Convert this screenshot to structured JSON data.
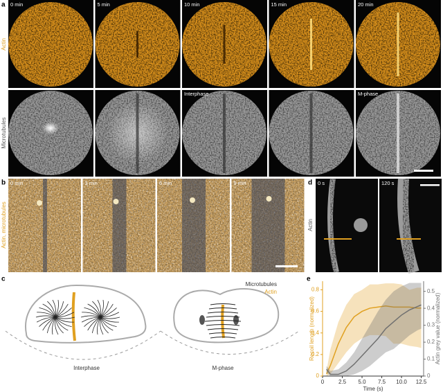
{
  "panels": {
    "a": {
      "label": "a",
      "row_labels": [
        "Actin",
        "Microtubules"
      ],
      "times": [
        "0 min",
        "5 min",
        "10 min",
        "15 min",
        "20 min"
      ],
      "phase_labels": [
        "Interphase",
        "M-phase"
      ]
    },
    "b": {
      "label": "b",
      "side_label": "Actin, microtubules",
      "times": [
        "0 min",
        "3 min",
        "6 min",
        "9 min"
      ]
    },
    "c": {
      "label": "c",
      "legend": [
        "Microtubules",
        "Actin"
      ],
      "captions": [
        "Interphase",
        "M-phase"
      ]
    },
    "d": {
      "label": "d",
      "side_label": "Actin",
      "times": [
        "0 s",
        "120 s"
      ]
    }
  },
  "chart_data": {
    "type": "line",
    "label": "e",
    "x_label": "Time (s)",
    "y_label": "Recoil length (normalized)",
    "y2_label": "Actin grey value (normalized)",
    "x": [
      0.5,
      1,
      2,
      3,
      4,
      5,
      6,
      7,
      8,
      9,
      10,
      11,
      12,
      12.5
    ],
    "xlim": [
      0,
      12.8
    ],
    "xticks": [
      0,
      2.5,
      {
        "value": 5,
        "label": "5.0"
      },
      7.5,
      {
        "value": 10,
        "label": "10.0"
      },
      12.5
    ],
    "ylim": [
      0,
      0.88
    ],
    "yticks": [
      0,
      0.2,
      0.4,
      0.6,
      0.8
    ],
    "y2lim": [
      0,
      0.56
    ],
    "y2ticks": [
      0,
      0.1,
      0.2,
      0.3,
      0.4,
      0.5
    ],
    "series": [
      {
        "name": "Recoil length",
        "color": "#e0a020",
        "values": [
          0.02,
          0.1,
          0.3,
          0.45,
          0.55,
          0.6,
          0.63,
          0.64,
          0.65,
          0.64,
          0.64,
          0.64,
          0.63,
          0.63
        ],
        "lower": [
          0,
          0.02,
          0.12,
          0.22,
          0.3,
          0.35,
          0.38,
          0.38,
          0.37,
          0.3,
          0.3,
          0.28,
          0.27,
          0.26
        ],
        "upper": [
          0.05,
          0.25,
          0.5,
          0.66,
          0.76,
          0.8,
          0.85,
          0.85,
          0.86,
          0.86,
          0.85,
          0.8,
          0.82,
          0.82
        ]
      },
      {
        "name": "Actin grey value",
        "color": "#707070",
        "axis": "y2",
        "values": [
          0.04,
          0.01,
          0.01,
          0.03,
          0.07,
          0.12,
          0.17,
          0.22,
          0.28,
          0.32,
          0.36,
          0.39,
          0.41,
          0.42
        ],
        "lower": [
          0.02,
          0,
          0,
          0,
          0.01,
          0.03,
          0.06,
          0.1,
          0.14,
          0.16,
          0.2,
          0.24,
          0.27,
          0.28
        ],
        "upper": [
          0.06,
          0.03,
          0.04,
          0.08,
          0.14,
          0.22,
          0.3,
          0.38,
          0.45,
          0.5,
          0.53,
          0.55,
          0.55,
          0.55
        ]
      }
    ]
  }
}
